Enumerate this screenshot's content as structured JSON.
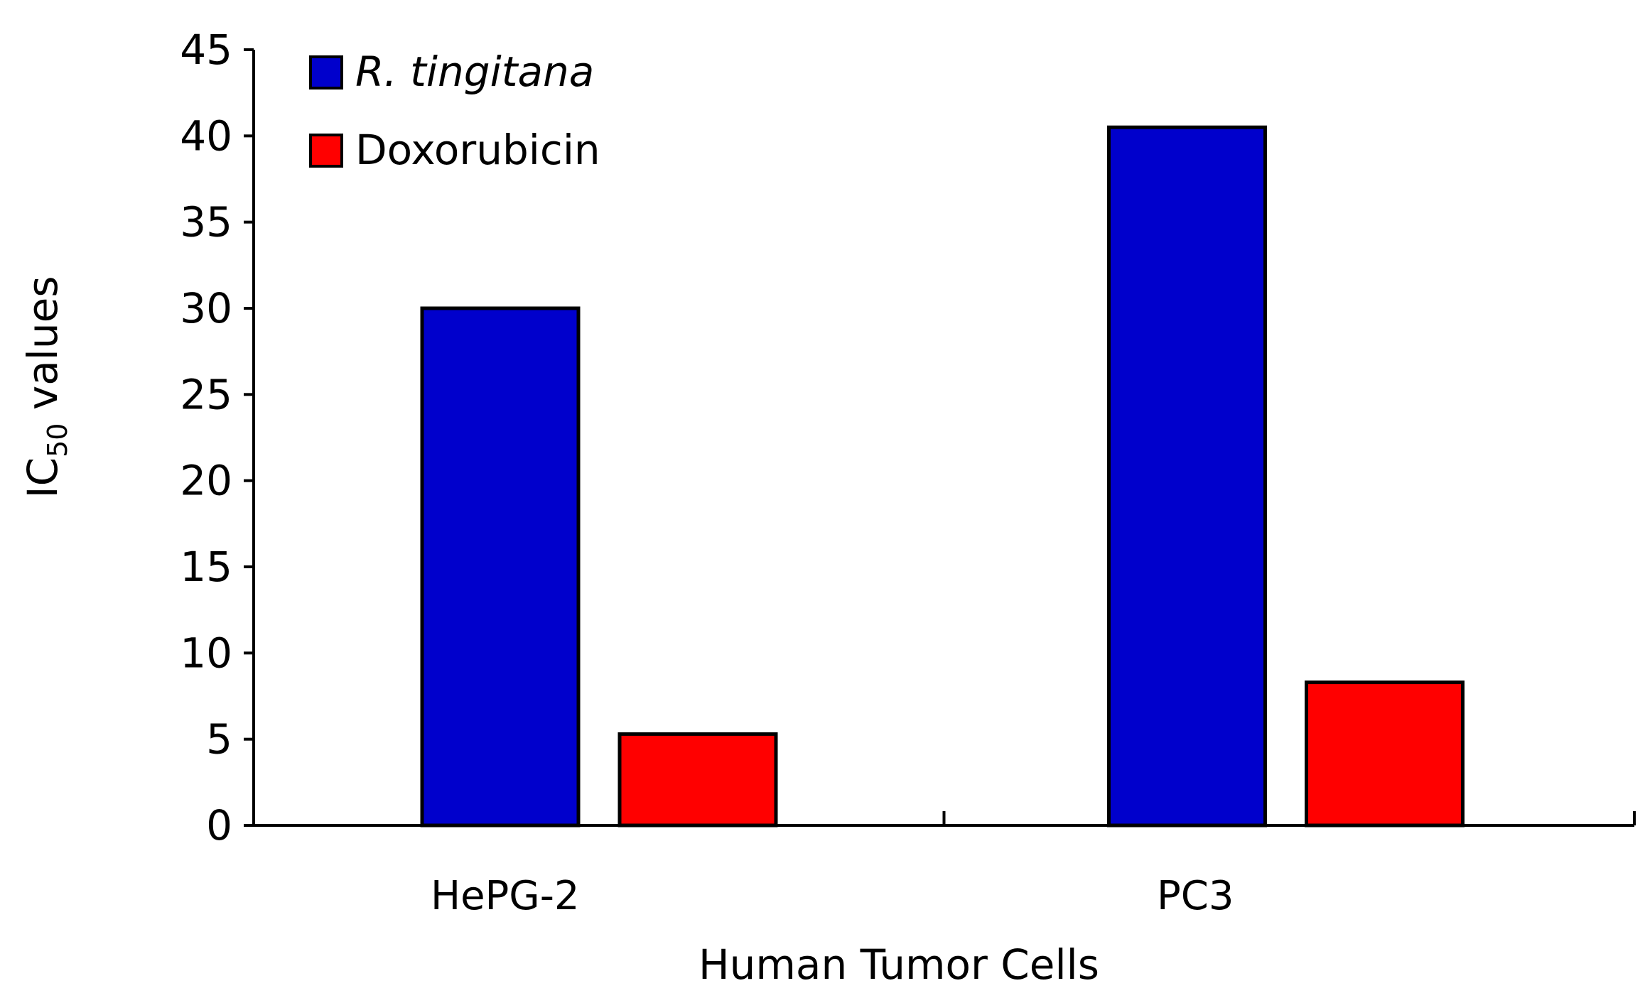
{
  "chart_data": {
    "type": "bar",
    "title": "",
    "categories": [
      "HePG-2",
      "PC3"
    ],
    "series": [
      {
        "name": "R. tingitana",
        "values": [
          30,
          40.5
        ],
        "color": "#0000CC"
      },
      {
        "name": "Doxorubicin",
        "values": [
          5.3,
          8.3
        ],
        "color": "#FF0000"
      }
    ],
    "xlabel": "Human Tumor Cells",
    "ylabel": {
      "main": "IC",
      "subscript": "50",
      "suffix": " values"
    },
    "ylim": [
      0,
      45
    ],
    "yticks": [
      "0",
      "5",
      "10",
      "15",
      "20",
      "25",
      "30",
      "35",
      "40",
      "45"
    ],
    "legend_position": "top-left",
    "grid": false
  }
}
